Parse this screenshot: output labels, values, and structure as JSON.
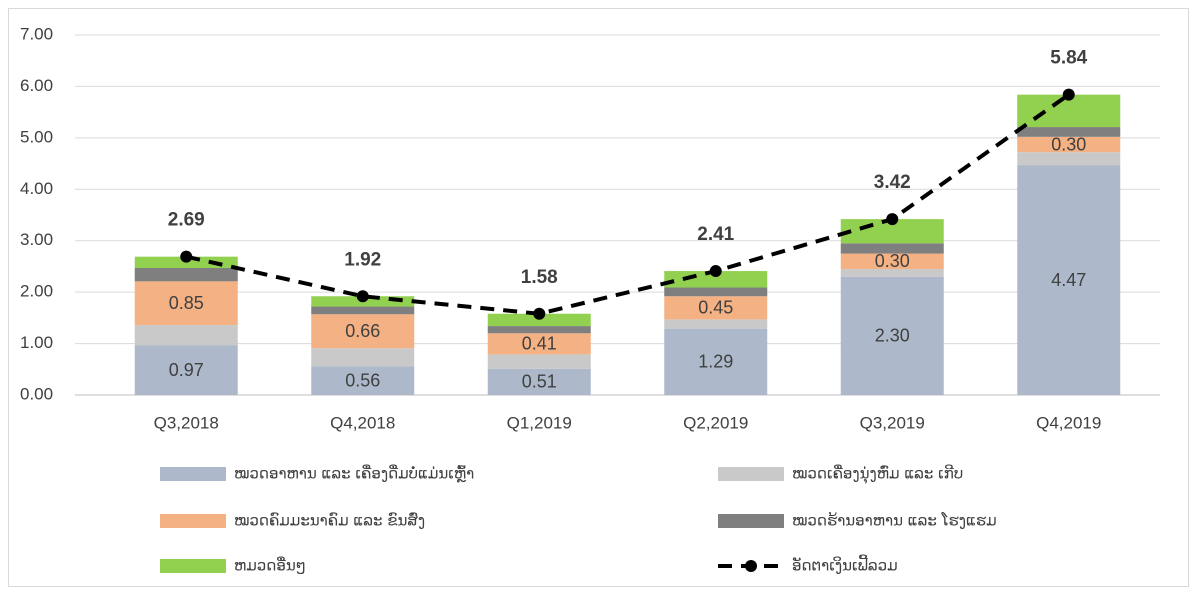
{
  "chart_data": {
    "type": "bar",
    "stacked": true,
    "categories": [
      "Q3,2018",
      "Q4,2018",
      "Q1,2019",
      "Q2,2019",
      "Q3,2019",
      "Q4,2019"
    ],
    "ylim": [
      0,
      7
    ],
    "yticks": [
      {
        "value": 0,
        "label": "0.00"
      },
      {
        "value": 1,
        "label": "1.00"
      },
      {
        "value": 2,
        "label": "2.00"
      },
      {
        "value": 3,
        "label": "3.00"
      },
      {
        "value": 4,
        "label": "4.00"
      },
      {
        "value": 5,
        "label": "5.00"
      },
      {
        "value": 6,
        "label": "6.00"
      },
      {
        "value": 7,
        "label": "7.00"
      }
    ],
    "grid": true,
    "series": [
      {
        "name": "ໝວດອາຫານ ແລະ ເຄື່ອງດື່ມບໍ່ແມ່ນເຫຼົ້າ",
        "color": "#adb9ca",
        "values": [
          0.97,
          0.56,
          0.51,
          1.29,
          2.3,
          4.47
        ],
        "value_labels": [
          "0.97",
          "0.56",
          "0.51",
          "1.29",
          "2.30",
          "4.47"
        ]
      },
      {
        "name": "ໝວດເຄື່ອງນຸ່ງຫົ່ມ ແລະ ເກີບ",
        "color": "#c9c9c9",
        "values": [
          0.39,
          0.35,
          0.28,
          0.18,
          0.15,
          0.25
        ]
      },
      {
        "name": "ໝວດຄົມມະນາຄົມ ແລະ ຂົນສົ່ງ",
        "color": "#f4b183",
        "values": [
          0.85,
          0.66,
          0.41,
          0.45,
          0.3,
          0.3
        ],
        "value_labels": [
          "0.85",
          "0.66",
          "0.41",
          "0.45",
          "0.30",
          "0.30"
        ]
      },
      {
        "name": "ໝວດຮ້ານອາຫານ ແລະ ໂຮງແຮມ",
        "color": "#7f7f7f",
        "values": [
          0.26,
          0.15,
          0.14,
          0.17,
          0.2,
          0.19
        ]
      },
      {
        "name": "ຫມວດອື່ນໆ",
        "color": "#92d050",
        "values": [
          0.22,
          0.2,
          0.24,
          0.32,
          0.47,
          0.63
        ]
      },
      {
        "name": "ອັດຕາເງິນເຟີ້ລວມ",
        "type": "line",
        "color": "#000000",
        "values": [
          2.69,
          1.92,
          1.58,
          2.41,
          3.42,
          5.84
        ]
      }
    ]
  }
}
